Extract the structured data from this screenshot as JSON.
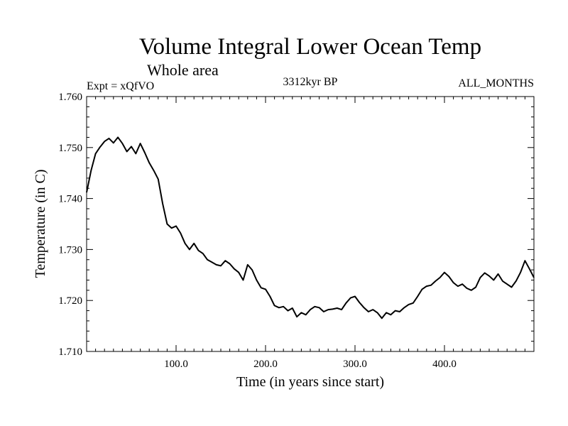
{
  "chart_data": {
    "type": "line",
    "title": "Volume Integral Lower Ocean Temp",
    "subtitle": "Whole area",
    "experiment": "Expt = xQfVO",
    "period": "3312kyr BP",
    "months": "ALL_MONTHS",
    "xlabel": "Time (in years since start)",
    "ylabel": "Temperature (in C)",
    "xlim": [
      0,
      500
    ],
    "ylim": [
      1.71,
      1.76
    ],
    "xticks": [
      100,
      200,
      300,
      400
    ],
    "xtick_labels": [
      "100.0",
      "200.0",
      "300.0",
      "400.0"
    ],
    "yticks": [
      1.71,
      1.72,
      1.73,
      1.74,
      1.75,
      1.76
    ],
    "ytick_labels": [
      "1.710",
      "1.720",
      "1.730",
      "1.740",
      "1.750",
      "1.760"
    ],
    "grid": false,
    "series": [
      {
        "name": "Volume Integral Lower Ocean Temp",
        "color": "#000000",
        "x": [
          0,
          5,
          10,
          15,
          20,
          25,
          30,
          35,
          40,
          45,
          50,
          55,
          60,
          65,
          70,
          75,
          80,
          85,
          90,
          95,
          100,
          105,
          110,
          115,
          120,
          125,
          130,
          135,
          140,
          145,
          150,
          155,
          160,
          165,
          170,
          175,
          180,
          185,
          190,
          195,
          200,
          205,
          210,
          215,
          220,
          225,
          230,
          235,
          240,
          245,
          250,
          255,
          260,
          265,
          270,
          275,
          280,
          285,
          290,
          295,
          300,
          305,
          310,
          315,
          320,
          325,
          330,
          335,
          340,
          345,
          350,
          355,
          360,
          365,
          370,
          375,
          380,
          385,
          390,
          395,
          400,
          405,
          410,
          415,
          420,
          425,
          430,
          435,
          440,
          445,
          450,
          455,
          460,
          465,
          470,
          475,
          480,
          485,
          490,
          495,
          500
        ],
        "values": [
          1.7412,
          1.7455,
          1.7488,
          1.7501,
          1.7512,
          1.7518,
          1.7509,
          1.752,
          1.7508,
          1.7492,
          1.7502,
          1.7488,
          1.7508,
          1.749,
          1.747,
          1.7455,
          1.7438,
          1.739,
          1.735,
          1.7342,
          1.7346,
          1.7332,
          1.7312,
          1.73,
          1.7312,
          1.7298,
          1.7292,
          1.728,
          1.7275,
          1.727,
          1.7268,
          1.7278,
          1.7272,
          1.7262,
          1.7255,
          1.724,
          1.727,
          1.726,
          1.724,
          1.7225,
          1.7222,
          1.7208,
          1.719,
          1.7186,
          1.7188,
          1.718,
          1.7185,
          1.7168,
          1.7176,
          1.7172,
          1.7182,
          1.7188,
          1.7186,
          1.7178,
          1.7182,
          1.7183,
          1.7185,
          1.7182,
          1.7195,
          1.7205,
          1.7208,
          1.7196,
          1.7186,
          1.7178,
          1.7182,
          1.7176,
          1.7165,
          1.7176,
          1.7172,
          1.718,
          1.7178,
          1.7186,
          1.7192,
          1.7195,
          1.7208,
          1.7222,
          1.7228,
          1.723,
          1.7238,
          1.7245,
          1.7255,
          1.7247,
          1.7235,
          1.7228,
          1.7232,
          1.7224,
          1.722,
          1.7226,
          1.7245,
          1.7254,
          1.7248,
          1.724,
          1.7252,
          1.7238,
          1.7232,
          1.7226,
          1.7238,
          1.7255,
          1.7278,
          1.7262,
          1.7245
        ]
      }
    ]
  }
}
